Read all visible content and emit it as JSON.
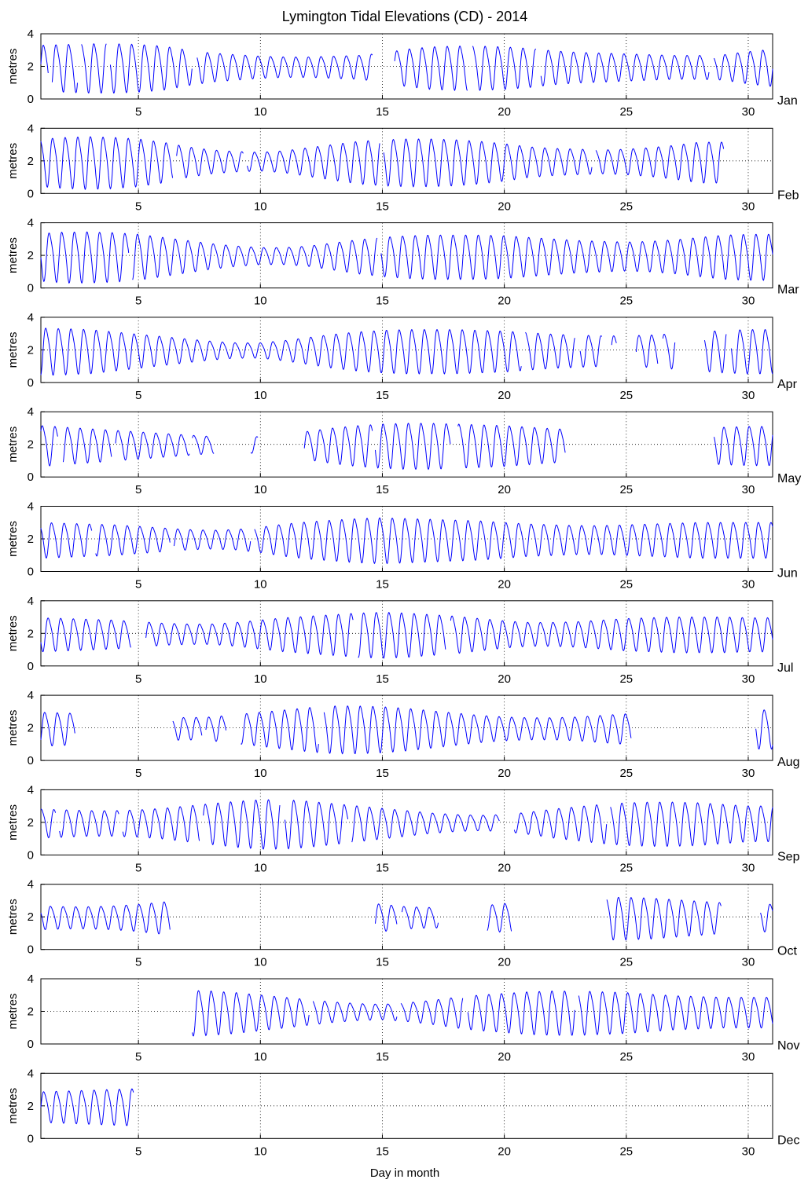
{
  "chart_data": {
    "type": "line",
    "title": "Lymington Tidal Elevations (CD) - 2014",
    "xlabel": "Day in month",
    "ylabel": "metres",
    "xlim": [
      1,
      31
    ],
    "ylim": [
      0,
      4
    ],
    "xticks": [
      5,
      10,
      15,
      20,
      25,
      30
    ],
    "yticks": [
      0,
      2,
      4
    ],
    "grid": "dotted",
    "line_color": "#0000ff",
    "mean_level": 2.0,
    "panels": [
      {
        "month": "Jan",
        "days": 31,
        "gaps": [
          [
            1.3,
            1.45
          ],
          [
            2.5,
            2.65
          ],
          [
            3.7,
            3.85
          ],
          [
            7.2,
            7.4
          ],
          [
            14.6,
            15.5
          ],
          [
            18.5,
            18.7
          ],
          [
            21.3,
            21.5
          ],
          [
            28.4,
            28.6
          ]
        ],
        "amp": [
          1.35,
          1.4,
          1.45,
          1.45,
          1.4,
          1.3,
          1.05,
          0.85,
          0.75,
          0.65,
          0.6,
          0.6,
          0.65,
          0.7,
          0.85,
          1.1,
          1.25,
          1.3,
          1.3,
          1.25,
          1.15,
          1.0,
          0.9,
          0.85,
          0.8,
          0.75,
          0.7,
          0.7,
          0.75,
          0.95,
          1.1
        ]
      },
      {
        "month": "Feb",
        "days": 28,
        "gaps": [
          [
            6.4,
            6.55
          ],
          [
            9.3,
            9.45
          ],
          [
            14.9,
            15.05
          ],
          [
            23.6,
            23.75
          ]
        ],
        "amp": [
          1.4,
          1.5,
          1.55,
          1.5,
          1.4,
          1.2,
          0.9,
          0.7,
          0.6,
          0.55,
          0.65,
          0.85,
          1.05,
          1.25,
          1.35,
          1.4,
          1.4,
          1.35,
          1.25,
          1.1,
          0.9,
          0.8,
          0.75,
          0.7,
          0.75,
          0.85,
          1.0,
          1.2
        ]
      },
      {
        "month": "Mar",
        "days": 31,
        "gaps": [
          [
            4.6,
            4.75
          ],
          [
            14.8,
            14.95
          ]
        ],
        "amp": [
          1.4,
          1.5,
          1.5,
          1.45,
          1.35,
          1.15,
          0.95,
          0.75,
          0.6,
          0.5,
          0.5,
          0.6,
          0.8,
          1.0,
          1.15,
          1.25,
          1.3,
          1.3,
          1.3,
          1.25,
          1.15,
          1.05,
          0.95,
          0.9,
          0.85,
          0.9,
          1.0,
          1.15,
          1.3,
          1.35,
          1.35
        ]
      },
      {
        "month": "Apr",
        "days": 30,
        "gaps": [
          [
            20.7,
            20.85
          ],
          [
            22.9,
            23.1
          ],
          [
            24.0,
            24.4
          ],
          [
            24.6,
            25.4
          ],
          [
            26.3,
            26.5
          ],
          [
            27.0,
            28.2
          ],
          [
            29.1,
            29.3
          ]
        ],
        "amp": [
          1.4,
          1.35,
          1.3,
          1.15,
          1.0,
          0.85,
          0.7,
          0.55,
          0.45,
          0.45,
          0.6,
          0.8,
          1.0,
          1.15,
          1.25,
          1.3,
          1.3,
          1.3,
          1.25,
          1.2,
          1.1,
          1.0,
          0.95,
          0.9,
          0.9,
          0.95,
          1.05,
          1.15,
          1.25,
          1.3
        ]
      },
      {
        "month": "May",
        "days": 31,
        "gaps": [
          [
            1.7,
            1.9
          ],
          [
            3.9,
            4.05
          ],
          [
            7.1,
            7.2
          ],
          [
            8.1,
            9.6
          ],
          [
            9.9,
            11.8
          ],
          [
            14.6,
            14.7
          ],
          [
            17.8,
            18.1
          ],
          [
            22.5,
            28.6
          ]
        ],
        "amp": [
          1.2,
          1.1,
          1.0,
          0.9,
          0.8,
          0.7,
          0.6,
          0.5,
          0.45,
          0.5,
          0.65,
          0.85,
          1.05,
          1.2,
          1.3,
          1.35,
          1.35,
          1.3,
          1.25,
          1.2,
          1.1,
          1.0,
          0.95,
          0.9,
          0.9,
          0.95,
          1.0,
          1.05,
          1.1,
          1.15,
          1.15
        ]
      },
      {
        "month": "Jun",
        "days": 30,
        "gaps": [
          [
            3.1,
            3.25
          ],
          [
            6.3,
            6.45
          ],
          [
            9.6,
            9.75
          ]
        ],
        "amp": [
          1.05,
          1.0,
          0.95,
          0.9,
          0.8,
          0.7,
          0.6,
          0.55,
          0.6,
          0.75,
          0.95,
          1.1,
          1.2,
          1.3,
          1.35,
          1.3,
          1.25,
          1.2,
          1.15,
          1.05,
          0.95,
          0.9,
          0.85,
          0.85,
          0.9,
          0.95,
          1.0,
          1.05,
          1.05,
          1.05
        ]
      },
      {
        "month": "Jul",
        "days": 31,
        "gaps": [
          [
            4.7,
            5.3
          ],
          [
            13.8,
            14.0
          ],
          [
            17.6,
            17.8
          ]
        ],
        "amp": [
          1.0,
          0.95,
          0.9,
          0.85,
          0.75,
          0.65,
          0.6,
          0.6,
          0.7,
          0.85,
          1.0,
          1.1,
          1.2,
          1.3,
          1.35,
          1.3,
          1.2,
          1.1,
          0.95,
          0.8,
          0.7,
          0.7,
          0.75,
          0.85,
          0.95,
          1.0,
          1.05,
          1.05,
          1.05,
          1.0,
          1.0
        ]
      },
      {
        "month": "Aug",
        "days": 31,
        "gaps": [
          [
            2.4,
            6.4
          ],
          [
            7.6,
            7.75
          ],
          [
            8.6,
            9.2
          ],
          [
            12.4,
            12.6
          ],
          [
            25.2,
            30.3
          ]
        ],
        "amp": [
          1.0,
          0.95,
          0.9,
          0.85,
          0.8,
          0.7,
          0.65,
          0.7,
          0.85,
          1.0,
          1.15,
          1.3,
          1.4,
          1.4,
          1.35,
          1.25,
          1.1,
          0.95,
          0.8,
          0.7,
          0.65,
          0.65,
          0.7,
          0.8,
          0.9,
          1.0,
          1.05,
          1.1,
          1.15,
          1.15,
          1.15
        ]
      },
      {
        "month": "Sep",
        "days": 30,
        "gaps": [
          [
            1.6,
            1.75
          ],
          [
            4.2,
            4.35
          ],
          [
            7.5,
            7.65
          ],
          [
            10.8,
            11.0
          ],
          [
            13.6,
            13.75
          ],
          [
            19.8,
            20.4
          ],
          [
            24.2,
            24.35
          ]
        ],
        "amp": [
          0.85,
          0.8,
          0.75,
          0.75,
          0.8,
          0.9,
          1.05,
          1.2,
          1.35,
          1.45,
          1.45,
          1.35,
          1.2,
          1.05,
          0.9,
          0.75,
          0.6,
          0.5,
          0.45,
          0.5,
          0.65,
          0.85,
          1.0,
          1.15,
          1.25,
          1.3,
          1.3,
          1.25,
          1.15,
          1.05
        ]
      },
      {
        "month": "Oct",
        "days": 31,
        "gaps": [
          [
            6.3,
            14.7
          ],
          [
            15.6,
            15.8
          ],
          [
            17.3,
            19.3
          ],
          [
            20.3,
            24.2
          ],
          [
            28.9,
            30.5
          ]
        ],
        "amp": [
          0.7,
          0.65,
          0.65,
          0.7,
          0.8,
          0.95,
          1.1,
          1.25,
          1.35,
          1.4,
          1.35,
          1.25,
          1.1,
          0.95,
          0.8,
          0.65,
          0.6,
          0.6,
          0.7,
          0.85,
          1.0,
          1.1,
          1.2,
          1.25,
          1.25,
          1.2,
          1.1,
          1.0,
          0.9,
          0.85,
          0.8
        ]
      },
      {
        "month": "Nov",
        "days": 30,
        "gaps": [
          [
            1.0,
            7.2
          ],
          [
            12.0,
            12.15
          ],
          [
            15.6,
            15.75
          ],
          [
            18.3,
            18.5
          ],
          [
            22.9,
            23.05
          ]
        ],
        "amp": [
          0.9,
          0.95,
          1.05,
          1.2,
          1.3,
          1.35,
          1.35,
          1.3,
          1.2,
          1.05,
          0.9,
          0.75,
          0.6,
          0.5,
          0.45,
          0.55,
          0.7,
          0.9,
          1.05,
          1.15,
          1.25,
          1.3,
          1.3,
          1.25,
          1.2,
          1.1,
          1.0,
          0.95,
          0.9,
          0.9
        ]
      },
      {
        "month": "Dec",
        "days": 31,
        "gaps": [
          [
            4.8,
            31.5
          ]
        ],
        "amp": [
          0.9,
          0.95,
          1.0,
          1.05,
          1.1,
          1.15,
          1.2,
          1.25,
          1.25,
          1.2,
          1.1,
          1.0,
          0.9,
          0.8,
          0.75,
          0.75,
          0.8,
          0.9,
          1.0,
          1.1,
          1.2,
          1.25,
          1.25,
          1.2,
          1.1,
          1.0,
          0.9,
          0.85,
          0.85,
          0.9,
          0.95
        ]
      }
    ]
  }
}
